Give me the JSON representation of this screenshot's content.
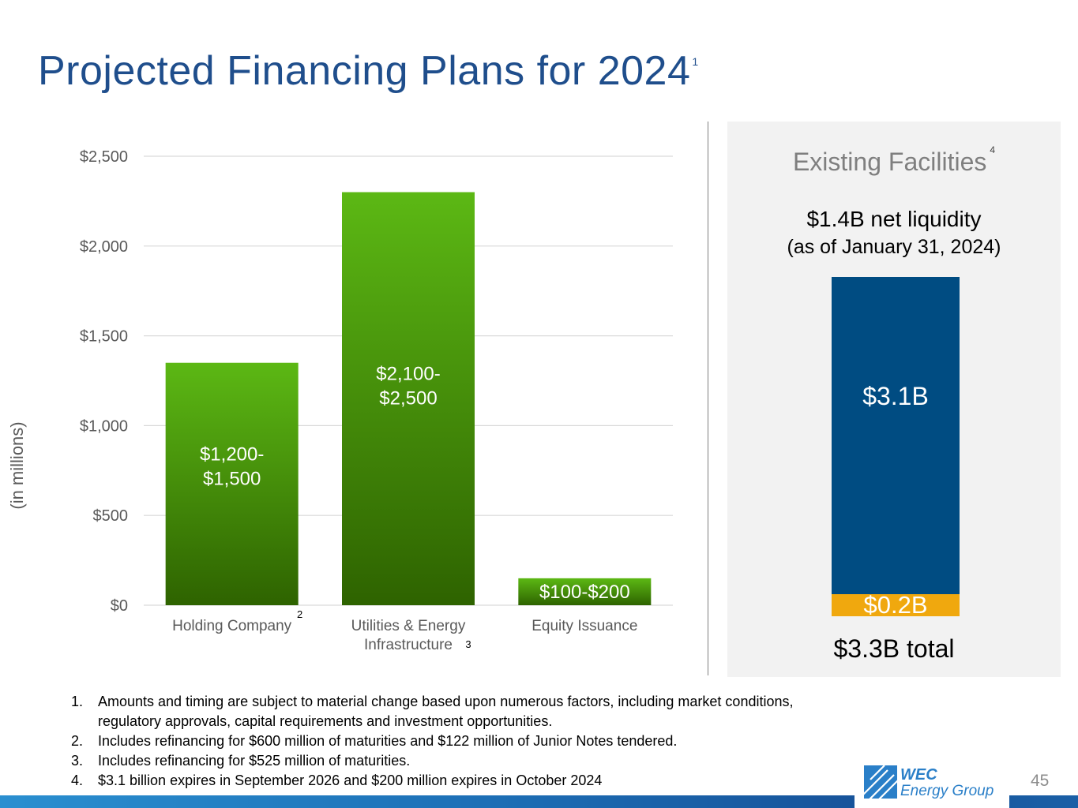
{
  "title": "Projected Financing Plans for 2024",
  "title_footnote": "1",
  "chart_data": {
    "type": "bar",
    "ylabel": "(in millions)",
    "ylim": [
      0,
      2500
    ],
    "yticks": [
      0,
      500,
      1000,
      1500,
      2000,
      2500
    ],
    "ytick_labels": [
      "$0",
      "$500",
      "$1,000",
      "$1,500",
      "$2,000",
      "$2,500"
    ],
    "grid": true,
    "categories": [
      "Holding Company",
      "Utilities & Energy Infrastructure",
      "Equity Issuance"
    ],
    "category_label_lines": [
      [
        "Holding Company"
      ],
      [
        "Utilities & Energy",
        "Infrastructure"
      ],
      [
        "Equity Issuance"
      ]
    ],
    "category_footnotes": [
      "2",
      "3",
      ""
    ],
    "values": [
      1350,
      2300,
      150
    ],
    "data_labels": [
      [
        "$1,200-",
        "$1,500"
      ],
      [
        "$2,100-",
        "$2,500"
      ],
      [
        "$100-$200"
      ]
    ],
    "colors": {
      "bar_top": "#5cb814",
      "bar_bottom": "#2e6300",
      "grid": "#d9d9d9",
      "tick_text": "#595959"
    }
  },
  "existing_facilities": {
    "title": "Existing Facilities",
    "footnote": "4",
    "liquidity": "$1.4B net liquidity",
    "as_of": "(as of January 31, 2024)",
    "stack": [
      {
        "label": "$3.1B",
        "value": 3.1,
        "color": "#004c82"
      },
      {
        "label": "$0.2B",
        "value": 0.2,
        "color": "#f0a80e"
      }
    ],
    "total": "$3.3B total"
  },
  "footnotes": [
    {
      "num": "1.",
      "text": "Amounts and timing are subject to material change based upon numerous factors, including market conditions, regulatory approvals, capital requirements and investment opportunities."
    },
    {
      "num": "2.",
      "text": "Includes refinancing for $600 million of maturities and $122 million of Junior Notes tendered."
    },
    {
      "num": "3.",
      "text": "Includes refinancing for $525 million of maturities."
    },
    {
      "num": "4.",
      "text": "$3.1 billion expires in September 2026 and $200 million expires in October 2024"
    }
  ],
  "logo": {
    "line1": "WEC",
    "line2": "Energy Group"
  },
  "page_number": "45"
}
